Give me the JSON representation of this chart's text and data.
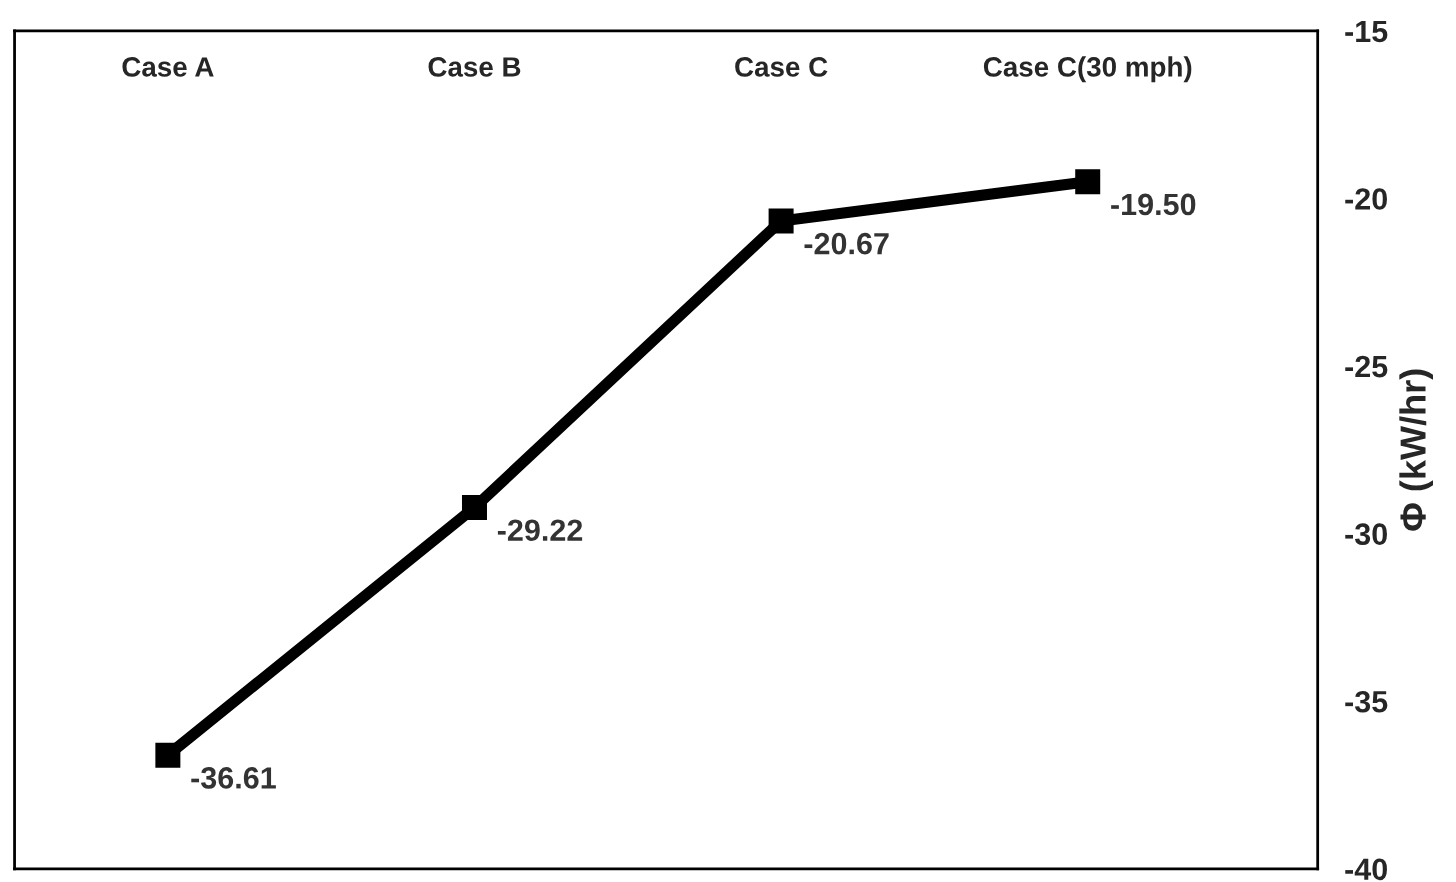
{
  "chart_data": {
    "type": "line",
    "ylabel": "Φ (kW/hr)",
    "categories": [
      "Case A",
      "Case B",
      "Case C",
      "Case C(30 mph)"
    ],
    "series": [
      {
        "color": "#000000",
        "values": [
          -36.61,
          -29.22,
          -20.67,
          -19.5
        ],
        "value_labels": [
          "-36.61",
          "-29.22",
          "-20.67",
          "-19.50"
        ]
      }
    ],
    "ylim": [
      -40,
      -15
    ],
    "yticks": [
      -40,
      -35,
      -30,
      -25,
      -20,
      -15
    ],
    "marker": "square",
    "line_style": "solid",
    "grid": false,
    "legend": false
  }
}
